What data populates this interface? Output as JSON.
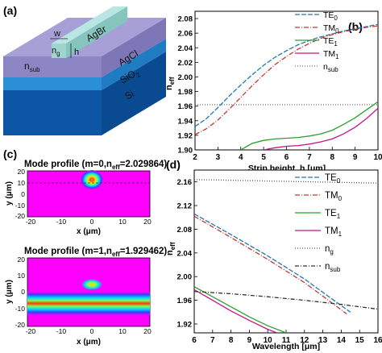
{
  "panels": {
    "a": {
      "label": "(a)",
      "layers": {
        "strip": "AgBr",
        "cladding": "AgCl",
        "oxide": "SiO",
        "oxide_sub": "2",
        "substrate": "Si",
        "sub_index": "n",
        "sub_index_sub": "sub",
        "strip_index": "n",
        "strip_index_sub": "g",
        "width_symbol": "w",
        "height_symbol": "h"
      }
    },
    "b": {
      "label": "(b)"
    },
    "c": {
      "label": "(c)",
      "top": {
        "title": "Mode profile (m=0,n",
        "title_sub": "eff",
        "title_end": "=2.029864)"
      },
      "bottom": {
        "title": "Mode profile (m=1,n",
        "title_sub": "eff",
        "title_end": "=1.929462)"
      },
      "xlabel": "x (μm)",
      "ylabel": "y (μm)",
      "xticks": [
        "-20",
        "-10",
        "0",
        "10",
        "20"
      ],
      "yticks": [
        "20",
        "10",
        "0",
        "-10",
        "-20"
      ]
    },
    "d": {
      "label": "(d)"
    }
  },
  "chart_data": [
    {
      "id": "b",
      "type": "line",
      "xlabel": "Strip height, h [μm]",
      "ylabel": "n",
      "ylabel_sub": "eff",
      "xlim": [
        2,
        10
      ],
      "ylim": [
        1.9,
        2.09
      ],
      "xticks": [
        2,
        3,
        4,
        5,
        6,
        7,
        8,
        9,
        10
      ],
      "yticks": [
        1.9,
        1.92,
        1.94,
        1.96,
        1.98,
        2.0,
        2.02,
        2.04,
        2.06,
        2.08
      ],
      "xtick_labels": [
        "2",
        "3",
        "4",
        "5",
        "6",
        "7",
        "8",
        "9",
        "10"
      ],
      "ytick_labels": [
        "1.90",
        "1.92",
        "1.94",
        "1.96",
        "1.98",
        "2.00",
        "2.02",
        "2.04",
        "2.06",
        "2.08"
      ],
      "legend_position": "top-right",
      "series": [
        {
          "name": "TE",
          "sub": "0",
          "color": "#1f77b4",
          "dash": "6,2",
          "x": [
            2,
            2.5,
            3,
            3.5,
            4,
            4.5,
            5,
            5.5,
            6,
            6.5,
            7,
            7.5,
            8,
            8.5,
            9,
            9.5,
            10
          ],
          "y": [
            1.932,
            1.943,
            1.958,
            1.974,
            1.989,
            2.003,
            2.016,
            2.027,
            2.036,
            2.044,
            2.05,
            2.055,
            2.059,
            2.063,
            2.066,
            2.069,
            2.072
          ]
        },
        {
          "name": "TM",
          "sub": "0",
          "color": "#c0392b",
          "dash": "6,2,1,2",
          "x": [
            2,
            2.5,
            3,
            3.5,
            4,
            4.5,
            5,
            5.5,
            6,
            6.5,
            7,
            7.5,
            8,
            8.5,
            9,
            9.5,
            10
          ],
          "y": [
            1.921,
            1.929,
            1.941,
            1.956,
            1.972,
            1.988,
            2.003,
            2.017,
            2.028,
            2.038,
            2.046,
            2.053,
            2.058,
            2.062,
            2.065,
            2.068,
            2.07
          ]
        },
        {
          "name": "TE",
          "sub": "1",
          "color": "#2ca02c",
          "dash": "",
          "x": [
            4,
            4.5,
            5,
            5.5,
            6,
            6.5,
            7,
            7.5,
            8,
            8.5,
            9,
            9.5,
            10
          ],
          "y": [
            1.9,
            1.909,
            1.913,
            1.915,
            1.916,
            1.917,
            1.919,
            1.922,
            1.927,
            1.935,
            1.944,
            1.955,
            1.966
          ]
        },
        {
          "name": "TM",
          "sub": "1",
          "color": "#c71585",
          "dash": "",
          "x": [
            5,
            5.5,
            6,
            6.5,
            7,
            7.5,
            8,
            8.5,
            9,
            9.5,
            10
          ],
          "y": [
            1.9,
            1.903,
            1.905,
            1.906,
            1.908,
            1.911,
            1.915,
            1.922,
            1.931,
            1.943,
            1.957
          ]
        },
        {
          "name": "n",
          "sub": "sub",
          "color": "#777777",
          "dash": "1,2",
          "x": [
            2,
            10
          ],
          "y": [
            1.962,
            1.962
          ]
        }
      ]
    },
    {
      "id": "d",
      "type": "line",
      "xlabel": "Wavelength [μm]",
      "ylabel": "n",
      "ylabel_sub": "eff",
      "xlim": [
        6,
        16
      ],
      "ylim": [
        1.905,
        2.18
      ],
      "xticks": [
        6,
        7,
        8,
        9,
        10,
        11,
        12,
        13,
        14,
        15,
        16
      ],
      "yticks": [
        1.92,
        1.96,
        2.0,
        2.04,
        2.08,
        2.12,
        2.16
      ],
      "xtick_labels": [
        "6",
        "7",
        "8",
        "9",
        "10",
        "11",
        "12",
        "13",
        "14",
        "15",
        "16"
      ],
      "ytick_labels": [
        "1.92",
        "1.96",
        "2.00",
        "2.04",
        "2.08",
        "2.12",
        "2.16"
      ],
      "legend_position": "top-right",
      "series": [
        {
          "name": "TE",
          "sub": "0",
          "color": "#1f77b4",
          "dash": "6,2",
          "x": [
            6,
            8,
            10,
            12,
            14,
            14.5
          ],
          "y": [
            2.106,
            2.071,
            2.035,
            1.996,
            1.951,
            1.94
          ]
        },
        {
          "name": "TM",
          "sub": "0",
          "color": "#c0392b",
          "dash": "6,2,1,2",
          "x": [
            6,
            8,
            10,
            12,
            14,
            14.3
          ],
          "y": [
            2.102,
            2.066,
            2.029,
            1.99,
            1.944,
            1.937
          ]
        },
        {
          "name": "TE",
          "sub": "1",
          "color": "#2ca02c",
          "dash": "",
          "x": [
            6,
            7,
            8,
            9,
            10,
            11
          ],
          "y": [
            1.983,
            1.966,
            1.949,
            1.932,
            1.917,
            1.905
          ]
        },
        {
          "name": "TM",
          "sub": "1",
          "color": "#c71585",
          "dash": "",
          "x": [
            6,
            7,
            8,
            9,
            10,
            10.5
          ],
          "y": [
            1.978,
            1.96,
            1.942,
            1.926,
            1.911,
            1.905
          ]
        },
        {
          "name": "n",
          "sub": "g",
          "color": "#555555",
          "dash": "1,2",
          "x": [
            6,
            16
          ],
          "y": [
            2.164,
            2.158
          ]
        },
        {
          "name": "n",
          "sub": "sub",
          "color": "#333333",
          "dash": "5,2,1,2",
          "x": [
            6,
            8,
            10,
            12,
            14,
            16
          ],
          "y": [
            1.975,
            1.971,
            1.966,
            1.96,
            1.953,
            1.945
          ]
        }
      ]
    }
  ]
}
